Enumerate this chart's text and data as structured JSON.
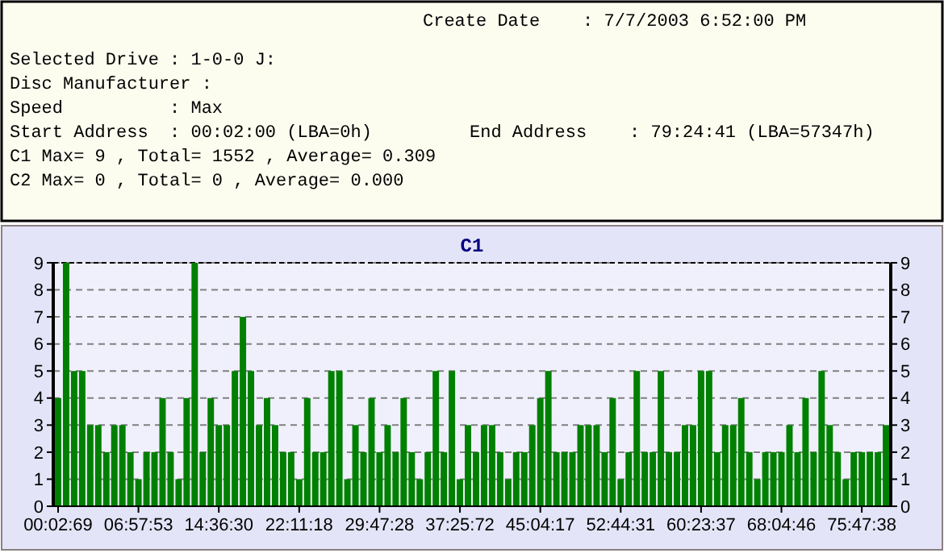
{
  "chart_data": {
    "type": "bar",
    "title": "C1",
    "annotations": [
      "Create Date    : 7/7/2003 6:52:00 PM",
      "Selected Drive : 1-0-0 J:",
      "Disc Manufacturer :",
      "Speed          : Max",
      "Start Address  : 00:02:00 (LBA=0h)",
      "End Address    : 79:24:41 (LBA=57347h)",
      "C1 Max= 9 , Total= 1552 , Average= 0.309",
      "C2 Max= 0 , Total= 0 , Average= 0.000"
    ],
    "categories": [
      "00:02:69",
      null,
      null,
      null,
      null,
      null,
      null,
      null,
      null,
      null,
      "06:57:53",
      null,
      null,
      null,
      null,
      null,
      null,
      null,
      null,
      null,
      "14:36:30",
      null,
      null,
      null,
      null,
      null,
      null,
      null,
      null,
      null,
      "22:11:18",
      null,
      null,
      null,
      null,
      null,
      null,
      null,
      null,
      null,
      "29:47:28",
      null,
      null,
      null,
      null,
      null,
      null,
      null,
      null,
      null,
      "37:25:72",
      null,
      null,
      null,
      null,
      null,
      null,
      null,
      null,
      null,
      "45:04:17",
      null,
      null,
      null,
      null,
      null,
      null,
      null,
      null,
      null,
      "52:44:31",
      null,
      null,
      null,
      null,
      null,
      null,
      null,
      null,
      null,
      "60:23:37",
      null,
      null,
      null,
      null,
      null,
      null,
      null,
      null,
      null,
      "68:04:46",
      null,
      null,
      null,
      null,
      null,
      null,
      null,
      null,
      null,
      "75:47:38",
      null,
      null,
      null
    ],
    "values": [
      4,
      9,
      5,
      5,
      3,
      3,
      2,
      3,
      3,
      2,
      1,
      2,
      2,
      4,
      2,
      1,
      4,
      9,
      2,
      4,
      3,
      3,
      5,
      7,
      5,
      3,
      4,
      3,
      2,
      2,
      1,
      4,
      2,
      2,
      5,
      5,
      1,
      3,
      2,
      4,
      2,
      3,
      2,
      4,
      2,
      1,
      2,
      5,
      2,
      5,
      1,
      3,
      2,
      3,
      3,
      2,
      1,
      2,
      2,
      3,
      4,
      5,
      2,
      2,
      2,
      3,
      3,
      3,
      2,
      4,
      1,
      2,
      5,
      2,
      2,
      5,
      2,
      2,
      3,
      3,
      5,
      5,
      2,
      3,
      3,
      4,
      2,
      1,
      2,
      2,
      2,
      3,
      2,
      4,
      2,
      5,
      3,
      2,
      1,
      2,
      2,
      2,
      2,
      3
    ],
    "color": "#008000",
    "ylim": [
      0,
      9
    ],
    "yticks": [
      0,
      1,
      2,
      3,
      4,
      5,
      6,
      7,
      8,
      9
    ],
    "y2lim": [
      0,
      9
    ],
    "y2ticks": [
      0,
      1,
      2,
      3,
      4,
      5,
      6,
      7,
      8,
      9
    ],
    "grid": "y"
  }
}
